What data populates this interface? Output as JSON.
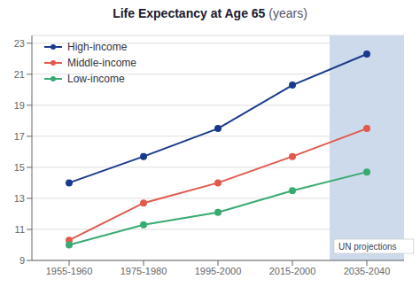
{
  "chart_data": {
    "type": "line",
    "title": "Life Expectancy at Age 65",
    "subtitle": "(years)",
    "categories": [
      "1955-1960",
      "1975-1980",
      "1995-2000",
      "2015-2000",
      "2035-2040"
    ],
    "series": [
      {
        "name": "High-income",
        "color": "#1a3a8c",
        "values": [
          14.0,
          15.7,
          17.5,
          20.3,
          22.3
        ]
      },
      {
        "name": "Middle-income",
        "color": "#e05a4e",
        "values": [
          10.3,
          12.7,
          14.0,
          15.7,
          17.5
        ]
      },
      {
        "name": "Low-income",
        "color": "#3aaa72",
        "values": [
          10.0,
          11.3,
          12.1,
          13.5,
          14.7
        ]
      }
    ],
    "ylim": [
      9,
      23.5
    ],
    "yticks": [
      9,
      11,
      13,
      15,
      17,
      19,
      21,
      23
    ],
    "grid": true,
    "legend": "upper left",
    "marker": "circle",
    "annotations": [
      {
        "text": "UN projections",
        "x": "2035-2040",
        "color": "#cddaeb"
      }
    ]
  }
}
